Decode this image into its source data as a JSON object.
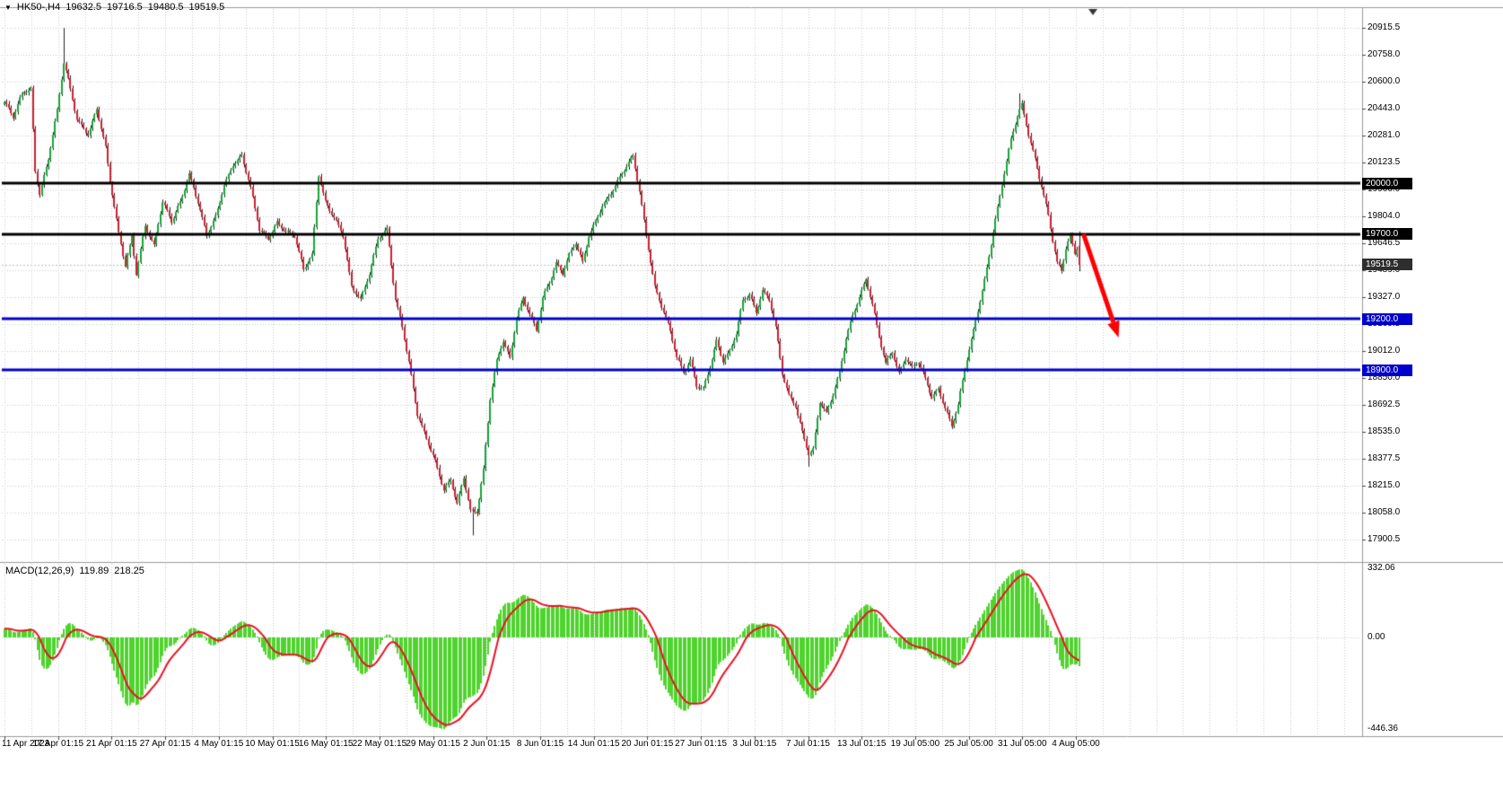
{
  "window": {
    "header": {
      "symbol_period": "HK50-,H4",
      "open": "19632.5",
      "high": "19716.5",
      "low": "19480.5",
      "close": "19519.5"
    },
    "macd_panel": {
      "label": "MACD(12,26,9)",
      "main_value": "119.89",
      "signal_value": "218.25",
      "scale_max": "332.06",
      "scale_zero": "0.00",
      "scale_min": "-446.36"
    }
  },
  "price_axis": {
    "top_price": 20915.5,
    "bottom_price": 17900.5,
    "tick_labels": [
      "20915.5",
      "20758.0",
      "20600.0",
      "20443.0",
      "20281.0",
      "20123.5",
      "19966.0",
      "19804.0",
      "19646.5",
      "19489.0",
      "19327.0",
      "19169.5",
      "19012.0",
      "18850.0",
      "18692.5",
      "18535.0",
      "18377.5",
      "18215.0",
      "18058.0",
      "17900.5"
    ]
  },
  "time_axis": {
    "labels": [
      "11 Apr 2023",
      "17 Apr 01:15",
      "21 Apr 01:15",
      "27 Apr 01:15",
      "4 May 01:15",
      "10 May 01:15",
      "16 May 01:15",
      "22 May 01:15",
      "29 May 01:15",
      "2 Jun 01:15",
      "8 Jun 01:15",
      "14 Jun 01:15",
      "20 Jun 01:15",
      "27 Jun 01:15",
      "3 Jul 01:15",
      "7 Jul 01:15",
      "13 Jul 01:15",
      "19 Jul 05:00",
      "25 Jul 05:00",
      "31 Jul 05:00",
      "4 Aug 05:00"
    ]
  },
  "colors": {
    "background": "#ffffff",
    "grid": "#c9c9c9",
    "candle_up": "#17a539",
    "candle_down": "#cd2031",
    "wick": "#222222",
    "level_black": "#000000",
    "level_blue": "#0000cc",
    "macd_histogram": "#4fd32e",
    "macd_signal": "#e81123",
    "arrow": "#ff0000",
    "separator": "#9a9a9a",
    "axis_tick": "#444444",
    "current_tag_bg": "#2e2e2e",
    "bid_line": "#bbbbbb"
  },
  "chart_data": {
    "type": "candlestick",
    "symbol": "HK50-",
    "timeframe": "H4",
    "bars_total": 490,
    "last_bar": {
      "open": 19632.5,
      "high": 19716.5,
      "low": 19480.5,
      "close": 19519.5
    },
    "current_price": {
      "value": 19519.5,
      "label": "19519.5"
    },
    "levels": [
      {
        "price": 20000.0,
        "label": "20000.0",
        "color": "#000000"
      },
      {
        "price": 19700.0,
        "label": "19700.0",
        "color": "#000000"
      },
      {
        "price": 19200.0,
        "label": "19200.0",
        "color": "#0000cc"
      },
      {
        "price": 18900.0,
        "label": "18900.0",
        "color": "#0000cc"
      }
    ],
    "annotations": [
      {
        "type": "arrow",
        "color": "#ff0000",
        "from": {
          "bar": 491,
          "price": 19700
        },
        "to": {
          "bar": 507,
          "price": 19090
        }
      }
    ],
    "spikes": [
      {
        "bar": 27,
        "high": 20915.5
      },
      {
        "bar": 213,
        "low": 17925.0
      },
      {
        "bar": 366,
        "low": 18330.0
      },
      {
        "bar": 462,
        "high": 20530.0
      }
    ],
    "price_waypoints": [
      [
        -60,
        20060
      ],
      [
        -35,
        20240
      ],
      [
        -12,
        20400
      ],
      [
        0,
        20480
      ],
      [
        4,
        20380
      ],
      [
        8,
        20520
      ],
      [
        12,
        20560
      ],
      [
        14,
        20080
      ],
      [
        16,
        19950
      ],
      [
        20,
        20150
      ],
      [
        24,
        20420
      ],
      [
        27,
        20700
      ],
      [
        29,
        20600
      ],
      [
        33,
        20380
      ],
      [
        38,
        20300
      ],
      [
        42,
        20440
      ],
      [
        46,
        20200
      ],
      [
        48,
        20000
      ],
      [
        52,
        19700
      ],
      [
        55,
        19520
      ],
      [
        58,
        19700
      ],
      [
        60,
        19480
      ],
      [
        64,
        19750
      ],
      [
        68,
        19620
      ],
      [
        72,
        19880
      ],
      [
        76,
        19780
      ],
      [
        80,
        19900
      ],
      [
        84,
        20060
      ],
      [
        88,
        19880
      ],
      [
        92,
        19680
      ],
      [
        96,
        19800
      ],
      [
        100,
        20000
      ],
      [
        104,
        20120
      ],
      [
        108,
        20160
      ],
      [
        112,
        19960
      ],
      [
        116,
        19720
      ],
      [
        120,
        19680
      ],
      [
        124,
        19780
      ],
      [
        128,
        19720
      ],
      [
        132,
        19680
      ],
      [
        136,
        19480
      ],
      [
        140,
        19580
      ],
      [
        143,
        20060
      ],
      [
        146,
        19900
      ],
      [
        150,
        19800
      ],
      [
        154,
        19680
      ],
      [
        158,
        19380
      ],
      [
        162,
        19320
      ],
      [
        166,
        19480
      ],
      [
        170,
        19680
      ],
      [
        174,
        19720
      ],
      [
        178,
        19300
      ],
      [
        181,
        19150
      ],
      [
        184,
        18950
      ],
      [
        188,
        18650
      ],
      [
        192,
        18500
      ],
      [
        196,
        18350
      ],
      [
        200,
        18180
      ],
      [
        203,
        18250
      ],
      [
        206,
        18120
      ],
      [
        209,
        18280
      ],
      [
        212,
        18080
      ],
      [
        215,
        18060
      ],
      [
        218,
        18300
      ],
      [
        221,
        18720
      ],
      [
        224,
        18950
      ],
      [
        227,
        19080
      ],
      [
        230,
        18980
      ],
      [
        233,
        19220
      ],
      [
        236,
        19320
      ],
      [
        239,
        19220
      ],
      [
        242,
        19120
      ],
      [
        245,
        19320
      ],
      [
        248,
        19420
      ],
      [
        251,
        19540
      ],
      [
        254,
        19480
      ],
      [
        257,
        19580
      ],
      [
        260,
        19640
      ],
      [
        263,
        19520
      ],
      [
        266,
        19680
      ],
      [
        269,
        19780
      ],
      [
        272,
        19880
      ],
      [
        275,
        19930
      ],
      [
        279,
        20010
      ],
      [
        283,
        20090
      ],
      [
        286,
        20150
      ],
      [
        289,
        19950
      ],
      [
        292,
        19700
      ],
      [
        296,
        19400
      ],
      [
        300,
        19240
      ],
      [
        303,
        19120
      ],
      [
        306,
        18960
      ],
      [
        309,
        18880
      ],
      [
        312,
        18960
      ],
      [
        315,
        18820
      ],
      [
        318,
        18800
      ],
      [
        321,
        18920
      ],
      [
        324,
        19060
      ],
      [
        327,
        18940
      ],
      [
        330,
        19000
      ],
      [
        333,
        19120
      ],
      [
        336,
        19320
      ],
      [
        339,
        19360
      ],
      [
        342,
        19240
      ],
      [
        345,
        19360
      ],
      [
        348,
        19300
      ],
      [
        351,
        19140
      ],
      [
        354,
        18880
      ],
      [
        357,
        18760
      ],
      [
        360,
        18700
      ],
      [
        363,
        18540
      ],
      [
        366,
        18400
      ],
      [
        368,
        18420
      ],
      [
        371,
        18700
      ],
      [
        374,
        18640
      ],
      [
        377,
        18760
      ],
      [
        380,
        18900
      ],
      [
        383,
        19100
      ],
      [
        386,
        19220
      ],
      [
        389,
        19320
      ],
      [
        392,
        19420
      ],
      [
        395,
        19280
      ],
      [
        398,
        19100
      ],
      [
        401,
        18950
      ],
      [
        404,
        19020
      ],
      [
        407,
        18880
      ],
      [
        410,
        18960
      ],
      [
        413,
        18900
      ],
      [
        416,
        18940
      ],
      [
        419,
        18850
      ],
      [
        422,
        18750
      ],
      [
        425,
        18800
      ],
      [
        428,
        18680
      ],
      [
        431,
        18560
      ],
      [
        434,
        18680
      ],
      [
        437,
        18900
      ],
      [
        440,
        19080
      ],
      [
        443,
        19260
      ],
      [
        446,
        19440
      ],
      [
        449,
        19650
      ],
      [
        452,
        19850
      ],
      [
        455,
        20050
      ],
      [
        458,
        20250
      ],
      [
        461,
        20400
      ],
      [
        463,
        20470
      ],
      [
        466,
        20300
      ],
      [
        469,
        20150
      ],
      [
        472,
        19980
      ],
      [
        475,
        19800
      ],
      [
        477,
        19650
      ],
      [
        479,
        19520
      ],
      [
        481,
        19480
      ],
      [
        483,
        19620
      ],
      [
        485,
        19700
      ],
      [
        487,
        19600
      ],
      [
        488,
        19630
      ],
      [
        489,
        19519.5
      ]
    ],
    "indicator": {
      "name": "MACD",
      "params": [
        12,
        26,
        9
      ],
      "display_range": {
        "max": 332.06,
        "min": -446.36
      }
    }
  }
}
